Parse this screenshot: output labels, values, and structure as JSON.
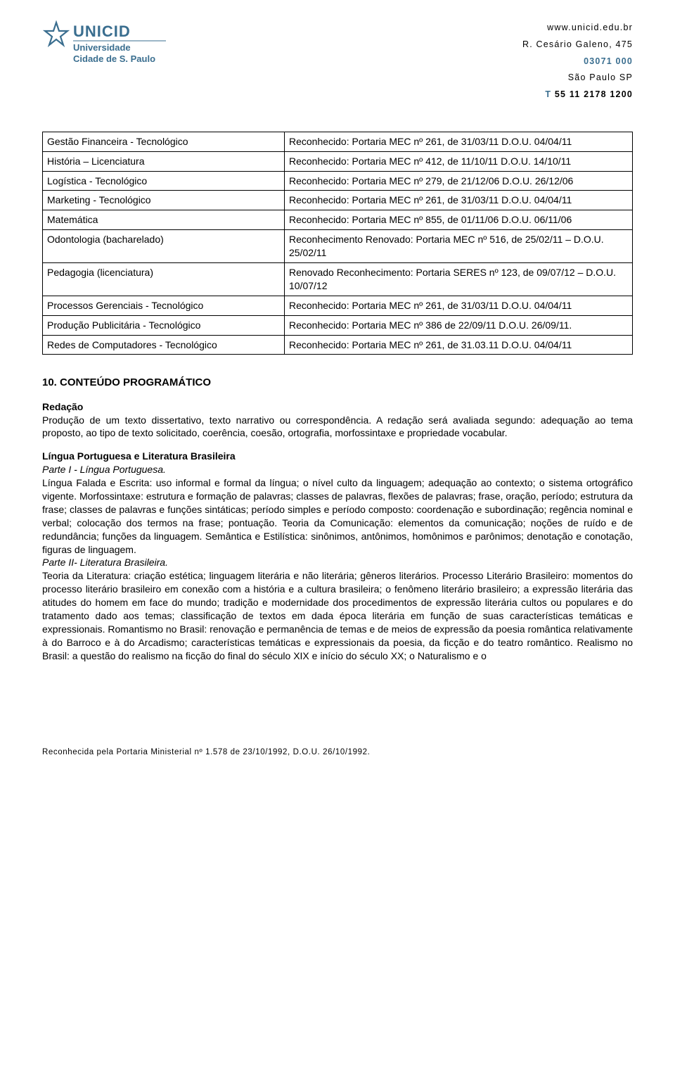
{
  "header": {
    "url": "www.unicid.edu.br",
    "street": "R. Cesário Galeno, 475",
    "cep": "03071 000",
    "city": "São Paulo SP",
    "phone_label": "T",
    "phone": "55 11 2178 1200"
  },
  "logo": {
    "top_text": "UNICID",
    "sub1": "Universidade",
    "sub2": "Cidade de S. Paulo",
    "star_color": "#3a6e8f",
    "text_color": "#3a6e8f"
  },
  "courses": {
    "rows": [
      {
        "name": "Gestão Financeira - Tecnológico",
        "rec": "Reconhecido: Portaria MEC nº 261, de 31/03/11 D.O.U. 04/04/11"
      },
      {
        "name": "História – Licenciatura",
        "rec": "Reconhecido: Portaria MEC nº 412, de 11/10/11 D.O.U. 14/10/11"
      },
      {
        "name": "Logística - Tecnológico",
        "rec": "Reconhecido: Portaria MEC nº 279, de 21/12/06 D.O.U. 26/12/06"
      },
      {
        "name": "Marketing - Tecnológico",
        "rec": "Reconhecido: Portaria MEC nº 261, de 31/03/11 D.O.U. 04/04/11"
      },
      {
        "name": "Matemática",
        "rec": "Reconhecido: Portaria MEC nº 855, de 01/11/06 D.O.U. 06/11/06"
      },
      {
        "name": "Odontologia (bacharelado)",
        "rec": "Reconhecimento Renovado: Portaria MEC nº 516, de 25/02/11 – D.O.U. 25/02/11"
      },
      {
        "name": "Pedagogia (licenciatura)",
        "rec": "Renovado Reconhecimento: Portaria SERES nº 123, de 09/07/12 – D.O.U. 10/07/12"
      },
      {
        "name": "Processos Gerenciais - Tecnológico",
        "rec": "Reconhecido: Portaria MEC nº 261, de 31/03/11 D.O.U. 04/04/11"
      },
      {
        "name": "Produção Publicitária - Tecnológico",
        "rec": "Reconhecido: Portaria MEC nº 386 de 22/09/11 D.O.U. 26/09/11."
      },
      {
        "name": "Redes de Computadores - Tecnológico",
        "rec": "Reconhecido: Portaria MEC nº 261, de 31.03.11 D.O.U. 04/04/11"
      }
    ]
  },
  "section_title": "10.    CONTEÚDO PROGRAMÁTICO",
  "redacao": {
    "title": "Redação",
    "body": "Produção de um texto dissertativo, texto narrativo ou correspondência. A redação será avaliada segundo: adequação ao tema proposto, ao tipo de texto solicitado, coerência, coesão, ortografia, morfossintaxe e propriedade vocabular."
  },
  "lingua": {
    "title": "Língua Portuguesa e Literatura Brasileira",
    "part1_title": "Parte I - Língua Portuguesa.",
    "part1_body": "Língua Falada e Escrita: uso informal e formal da língua; o nível culto da linguagem; adequação ao contexto; o sistema ortográfico vigente. Morfossintaxe: estrutura e formação de palavras; classes de palavras, flexões de palavras; frase, oração, período; estrutura da frase; classes de palavras e funções sintáticas; período simples e período composto: coordenação e subordinação; regência nominal e verbal; colocação dos termos na frase; pontuação. Teoria da Comunicação: elementos da comunicação; noções de ruído e de redundância; funções da linguagem. Semântica e Estilística: sinônimos, antônimos, homônimos e parônimos; denotação e conotação, figuras de linguagem.",
    "part2_title": "Parte II- Literatura Brasileira.",
    "part2_body": "Teoria da Literatura: criação estética; linguagem literária e não literária; gêneros literários. Processo Literário Brasileiro: momentos do processo literário brasileiro em conexão com a história e a cultura brasileira; o fenômeno literário brasileiro; a expressão literária das atitudes do homem em face do mundo; tradição e modernidade dos procedimentos de expressão literária cultos ou populares e do tratamento dado aos temas; classificação de textos em dada época literária em função de suas características temáticas e expressionais. Romantismo no Brasil: renovação e permanência de temas e de meios de expressão da poesia romântica relativamente à do Barroco e à do Arcadismo; características temáticas e expressionais da poesia, da ficção e do teatro romântico. Realismo no Brasil: a questão do realismo na ficção do final do século XIX e início do século XX; o Naturalismo e o"
  },
  "footer": "Reconhecida pela Portaria Ministerial nº 1.578 de 23/10/1992, D.O.U. 26/10/1992."
}
